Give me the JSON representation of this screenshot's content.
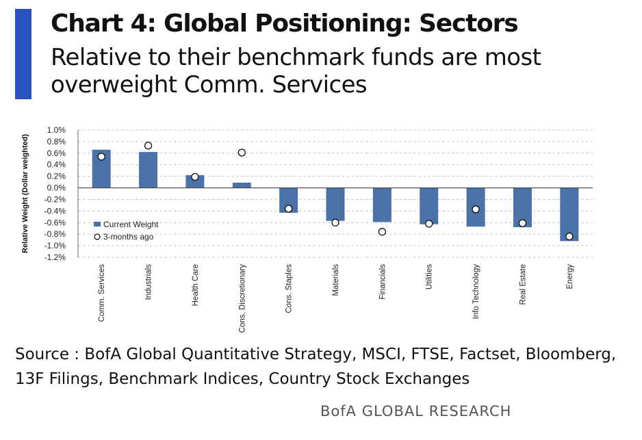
{
  "header": {
    "title": "Chart 4: Global Positioning: Sectors",
    "subtitle": "Relative to their benchmark funds are most overweight Comm. Services"
  },
  "footer": {
    "source": "Source : BofA Global Quantitative Strategy, MSCI, FTSE, Factset, Bloomberg, 13F Filings, Benchmark Indices, Country Stock Exchanges",
    "brand": "BofA GLOBAL RESEARCH"
  },
  "colors": {
    "accent": "#2a52be",
    "bar": "#4a72a8"
  },
  "chart_data": {
    "type": "bar",
    "ylabel": "Relative Weight (Dollar weighted)",
    "ylim": [
      -1.2,
      1.0
    ],
    "ytick_values": [
      1.0,
      0.8,
      0.6,
      0.4,
      0.2,
      0.0,
      -0.2,
      -0.4,
      -0.6,
      -0.8,
      -1.0,
      -1.2
    ],
    "ytick_labels": [
      "1.0%",
      "0.8%",
      "0.6%",
      "0.4%",
      "0.2%",
      "0.0%",
      "-0.2%",
      "-0.4%",
      "-0.6%",
      "-0.8%",
      "-1.0%",
      "-1.2%"
    ],
    "grid": true,
    "legend_position": "lower-left",
    "categories": [
      "Comm. Services",
      "Industrials",
      "Health Care",
      "Cons. Discretionary",
      "Cons. Staples",
      "Materials",
      "Financials",
      "Utilities",
      "Info Technology",
      "Real Estate",
      "Energy"
    ],
    "series": [
      {
        "name": "Current Weight",
        "style": "bar",
        "values": [
          0.66,
          0.62,
          0.22,
          0.09,
          -0.43,
          -0.57,
          -0.59,
          -0.63,
          -0.67,
          -0.68,
          -0.92
        ]
      },
      {
        "name": "3-months ago",
        "style": "marker",
        "values": [
          0.54,
          0.73,
          0.19,
          0.61,
          -0.36,
          -0.6,
          -0.76,
          -0.62,
          -0.37,
          -0.61,
          -0.84
        ]
      }
    ]
  }
}
